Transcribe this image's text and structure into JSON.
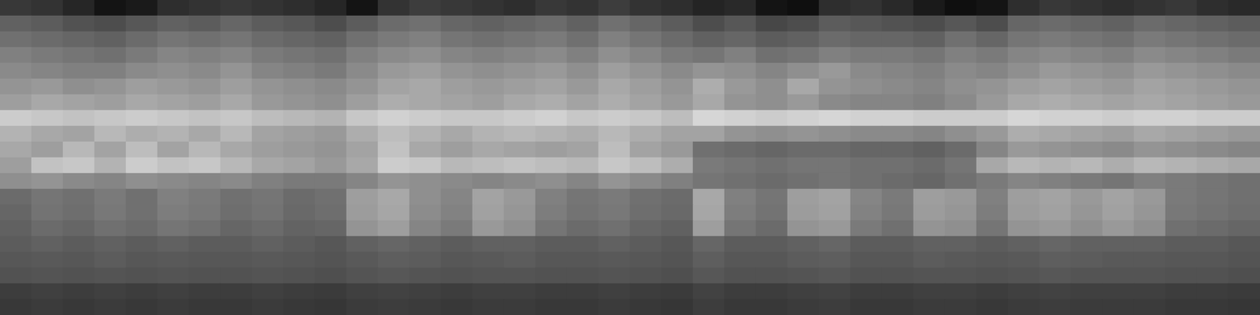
{
  "chart_data": {
    "type": "heatmap",
    "tick_labels": false,
    "grid": false,
    "zlim": [
      0,
      100
    ],
    "z": [
      [
        22,
        20,
        15,
        8,
        10,
        18,
        20,
        22,
        20,
        18,
        15,
        8,
        20,
        24,
        22,
        20,
        18,
        22,
        20,
        24,
        20,
        18,
        14,
        16,
        8,
        6,
        18,
        20,
        16,
        10,
        6,
        8,
        18,
        22,
        20,
        18,
        20,
        22,
        18,
        16
      ],
      [
        38,
        36,
        32,
        30,
        34,
        38,
        36,
        40,
        36,
        34,
        30,
        36,
        42,
        44,
        40,
        38,
        40,
        42,
        38,
        44,
        40,
        36,
        30,
        34,
        28,
        30,
        36,
        34,
        32,
        30,
        34,
        30,
        40,
        42,
        40,
        38,
        42,
        40,
        38,
        36
      ],
      [
        44,
        42,
        40,
        38,
        42,
        46,
        44,
        46,
        42,
        40,
        38,
        44,
        48,
        50,
        46,
        44,
        46,
        48,
        44,
        50,
        46,
        42,
        38,
        40,
        36,
        38,
        42,
        40,
        40,
        38,
        44,
        40,
        46,
        48,
        46,
        44,
        48,
        46,
        44,
        42
      ],
      [
        50,
        48,
        46,
        44,
        48,
        52,
        50,
        52,
        48,
        46,
        44,
        50,
        54,
        56,
        52,
        50,
        52,
        54,
        50,
        56,
        52,
        48,
        46,
        50,
        44,
        46,
        50,
        48,
        48,
        46,
        50,
        48,
        52,
        54,
        52,
        50,
        54,
        52,
        50,
        48
      ],
      [
        54,
        52,
        50,
        50,
        54,
        56,
        54,
        58,
        52,
        50,
        48,
        54,
        60,
        62,
        58,
        56,
        58,
        60,
        56,
        62,
        58,
        54,
        58,
        56,
        52,
        56,
        60,
        54,
        52,
        50,
        54,
        52,
        56,
        60,
        58,
        56,
        60,
        58,
        56,
        54
      ],
      [
        58,
        60,
        56,
        58,
        62,
        60,
        58,
        62,
        58,
        56,
        54,
        58,
        64,
        66,
        62,
        60,
        62,
        64,
        60,
        66,
        62,
        58,
        68,
        60,
        56,
        66,
        58,
        56,
        54,
        52,
        56,
        58,
        62,
        64,
        62,
        60,
        64,
        62,
        60,
        58
      ],
      [
        62,
        66,
        64,
        62,
        66,
        64,
        62,
        66,
        60,
        58,
        56,
        62,
        68,
        66,
        64,
        62,
        66,
        68,
        64,
        68,
        64,
        60,
        66,
        58,
        56,
        60,
        54,
        52,
        52,
        50,
        54,
        60,
        66,
        68,
        66,
        64,
        66,
        64,
        62,
        60
      ],
      [
        80,
        78,
        76,
        78,
        80,
        78,
        76,
        78,
        74,
        72,
        70,
        78,
        82,
        80,
        78,
        78,
        80,
        82,
        78,
        80,
        78,
        74,
        84,
        82,
        80,
        82,
        84,
        82,
        82,
        80,
        80,
        80,
        84,
        82,
        82,
        80,
        82,
        82,
        80,
        80
      ],
      [
        70,
        66,
        64,
        72,
        68,
        70,
        66,
        72,
        64,
        62,
        60,
        68,
        74,
        70,
        66,
        70,
        72,
        70,
        68,
        72,
        68,
        64,
        64,
        58,
        56,
        58,
        56,
        54,
        54,
        52,
        56,
        60,
        68,
        66,
        64,
        62,
        66,
        64,
        62,
        60
      ],
      [
        66,
        62,
        72,
        64,
        74,
        64,
        72,
        66,
        62,
        60,
        58,
        64,
        76,
        66,
        62,
        66,
        64,
        62,
        64,
        74,
        64,
        60,
        44,
        42,
        40,
        42,
        42,
        40,
        40,
        38,
        42,
        52,
        60,
        58,
        56,
        54,
        58,
        56,
        54,
        52
      ],
      [
        62,
        76,
        78,
        70,
        80,
        76,
        78,
        72,
        66,
        64,
        60,
        66,
        80,
        78,
        72,
        74,
        76,
        74,
        72,
        78,
        74,
        68,
        48,
        46,
        44,
        46,
        46,
        44,
        44,
        42,
        46,
        66,
        72,
        70,
        72,
        68,
        72,
        70,
        68,
        66
      ],
      [
        56,
        58,
        54,
        52,
        56,
        54,
        52,
        54,
        50,
        48,
        48,
        52,
        58,
        56,
        54,
        52,
        54,
        56,
        52,
        58,
        54,
        50,
        46,
        44,
        42,
        44,
        46,
        44,
        42,
        40,
        44,
        48,
        52,
        50,
        48,
        46,
        50,
        48,
        46,
        44
      ],
      [
        42,
        46,
        44,
        48,
        44,
        50,
        48,
        44,
        46,
        42,
        44,
        62,
        66,
        56,
        52,
        64,
        60,
        50,
        46,
        48,
        44,
        42,
        66,
        50,
        46,
        62,
        64,
        52,
        48,
        62,
        60,
        50,
        62,
        64,
        60,
        64,
        60,
        48,
        46,
        44
      ],
      [
        40,
        45,
        43,
        47,
        44,
        49,
        47,
        43,
        45,
        41,
        43,
        61,
        65,
        55,
        51,
        63,
        59,
        49,
        45,
        47,
        43,
        41,
        65,
        49,
        45,
        61,
        63,
        51,
        47,
        61,
        59,
        49,
        61,
        63,
        59,
        63,
        59,
        47,
        45,
        43
      ],
      [
        38,
        42,
        40,
        44,
        42,
        46,
        44,
        40,
        42,
        39,
        40,
        58,
        62,
        52,
        48,
        60,
        56,
        46,
        42,
        44,
        40,
        38,
        62,
        46,
        42,
        58,
        60,
        48,
        44,
        58,
        56,
        46,
        58,
        60,
        56,
        60,
        56,
        44,
        42,
        40
      ],
      [
        36,
        38,
        36,
        38,
        36,
        38,
        36,
        36,
        38,
        36,
        34,
        38,
        40,
        38,
        36,
        38,
        38,
        36,
        36,
        38,
        36,
        34,
        40,
        36,
        36,
        38,
        40,
        36,
        36,
        38,
        38,
        36,
        38,
        40,
        38,
        38,
        38,
        36,
        36,
        34
      ],
      [
        34,
        35,
        34,
        36,
        34,
        35,
        34,
        34,
        35,
        34,
        33,
        35,
        37,
        36,
        34,
        35,
        36,
        34,
        34,
        35,
        34,
        33,
        37,
        34,
        34,
        36,
        37,
        34,
        34,
        36,
        35,
        34,
        35,
        37,
        36,
        35,
        35,
        34,
        34,
        33
      ],
      [
        32,
        33,
        32,
        33,
        32,
        33,
        32,
        32,
        33,
        32,
        31,
        33,
        34,
        33,
        32,
        33,
        33,
        32,
        32,
        33,
        32,
        31,
        34,
        32,
        32,
        33,
        34,
        32,
        32,
        33,
        33,
        32,
        33,
        34,
        33,
        33,
        33,
        32,
        32,
        31
      ],
      [
        24,
        25,
        24,
        25,
        24,
        25,
        24,
        24,
        25,
        24,
        23,
        25,
        26,
        25,
        24,
        25,
        25,
        24,
        24,
        25,
        24,
        23,
        26,
        24,
        24,
        25,
        26,
        24,
        24,
        25,
        25,
        24,
        25,
        26,
        25,
        25,
        25,
        24,
        24,
        23
      ],
      [
        22,
        23,
        22,
        23,
        22,
        23,
        22,
        22,
        23,
        22,
        21,
        23,
        24,
        23,
        22,
        23,
        23,
        22,
        22,
        23,
        22,
        21,
        24,
        22,
        22,
        23,
        24,
        22,
        22,
        23,
        23,
        22,
        23,
        24,
        23,
        23,
        23,
        22,
        22,
        21
      ]
    ]
  }
}
